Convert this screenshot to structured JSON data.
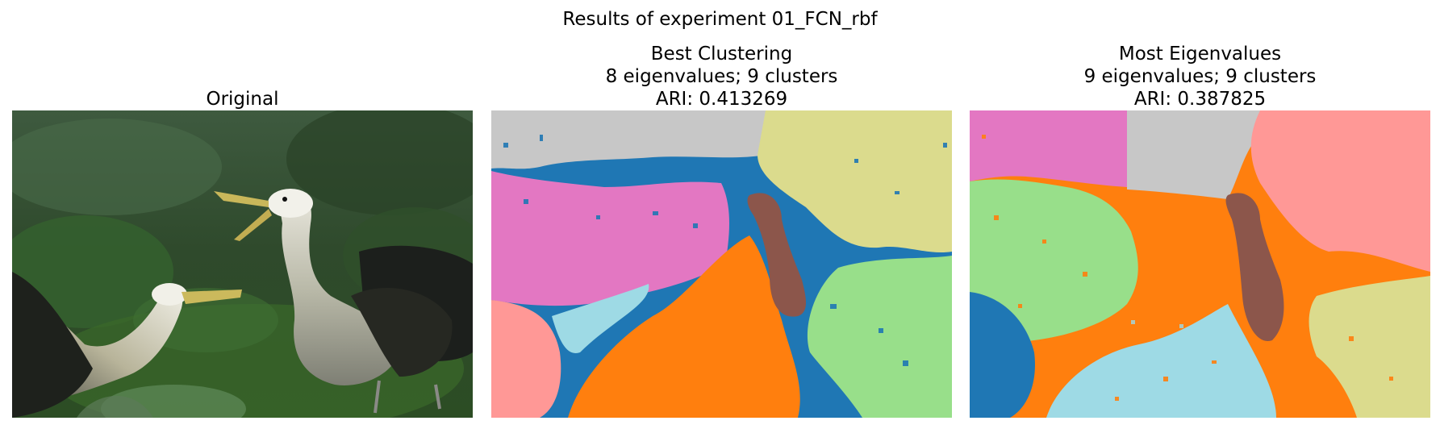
{
  "figure": {
    "suptitle": "Results of experiment 01_FCN_rbf"
  },
  "panels": [
    {
      "title_lines": [
        "Original"
      ],
      "image": "photo of two waved albatrosses on green vegetation"
    },
    {
      "title_lines": [
        "Best Clustering",
        "8 eigenvalues; 9 clusters",
        "ARI: 0.413269"
      ],
      "image": "segmentation map"
    },
    {
      "title_lines": [
        "Most Eigenvalues",
        "9 eigenvalues; 9 clusters",
        "ARI: 0.387825"
      ],
      "image": "segmentation map"
    }
  ],
  "colors": {
    "blue": "#1f77b4",
    "orange": "#ff7f0e",
    "light_green": "#98df8a",
    "pink": "#e377c2",
    "gray": "#c7c7c7",
    "olive": "#dbdb8d",
    "salmon": "#ff9896",
    "cyan": "#9edae5",
    "brown": "#8c564b"
  }
}
